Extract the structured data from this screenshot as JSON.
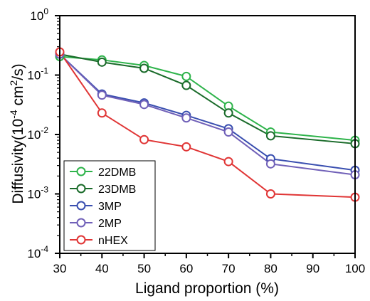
{
  "chart_data": {
    "type": "line",
    "title": "",
    "xlabel": "Ligand proportion (%)",
    "ylabel": {
      "prefix": "Diffusivity(10",
      "exponent": "-4",
      "mid": " cm",
      "sup2": "2",
      "suffix": "/s)"
    },
    "x_ticks": [
      "30",
      "40",
      "50",
      "60",
      "70",
      "80",
      "90",
      "100"
    ],
    "y_ticks": [
      {
        "base": "10",
        "exp": "0",
        "value": 1
      },
      {
        "base": "10",
        "exp": "-1",
        "value": 0.1
      },
      {
        "base": "10",
        "exp": "-2",
        "value": 0.01
      },
      {
        "base": "10",
        "exp": "-3",
        "value": 0.001
      },
      {
        "base": "10",
        "exp": "-4",
        "value": 0.0001
      }
    ],
    "xlim": [
      30,
      100
    ],
    "ylim": [
      0.0001,
      1
    ],
    "y_scale": "log",
    "grid": false,
    "legend_position": "bottom-left",
    "series": [
      {
        "name": "22DMB",
        "color": "#2db34a",
        "x": [
          30,
          40,
          50,
          60,
          70,
          80,
          100
        ],
        "y": [
          0.205,
          0.18,
          0.145,
          0.095,
          0.03,
          0.011,
          0.008
        ]
      },
      {
        "name": "23DMB",
        "color": "#1a6b2a",
        "x": [
          30,
          40,
          50,
          60,
          70,
          80,
          100
        ],
        "y": [
          0.225,
          0.165,
          0.13,
          0.067,
          0.023,
          0.0095,
          0.007
        ]
      },
      {
        "name": "3MP",
        "color": "#3a4fb0",
        "x": [
          30,
          40,
          50,
          60,
          70,
          80,
          100
        ],
        "y": [
          0.225,
          0.048,
          0.034,
          0.021,
          0.0125,
          0.0039,
          0.0025
        ]
      },
      {
        "name": "2MP",
        "color": "#7060b8",
        "x": [
          30,
          40,
          50,
          60,
          70,
          80,
          100
        ],
        "y": [
          0.225,
          0.046,
          0.032,
          0.019,
          0.011,
          0.0032,
          0.0021
        ]
      },
      {
        "name": "nHEX",
        "color": "#e03535",
        "x": [
          30,
          40,
          50,
          60,
          70,
          80,
          100
        ],
        "y": [
          0.245,
          0.023,
          0.0082,
          0.0062,
          0.0035,
          0.001,
          0.00088
        ]
      }
    ]
  }
}
